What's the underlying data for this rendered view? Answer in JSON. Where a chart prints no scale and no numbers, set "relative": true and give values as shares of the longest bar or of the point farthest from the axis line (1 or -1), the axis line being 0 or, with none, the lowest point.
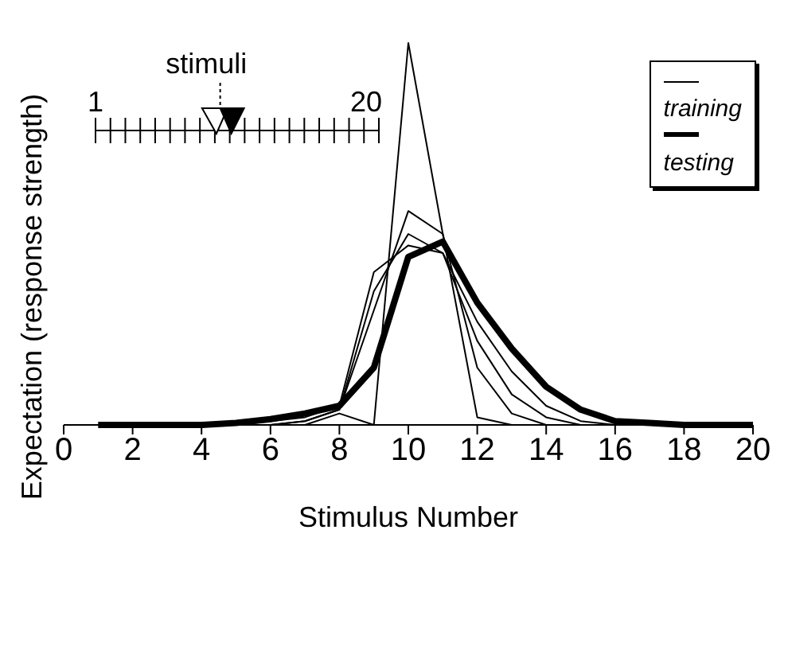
{
  "chart_data": {
    "type": "line",
    "xlabel": "Stimulus Number",
    "ylabel": "Expectation (response strength)",
    "relative": true,
    "x": [
      1,
      2,
      3,
      4,
      5,
      6,
      7,
      8,
      9,
      10,
      11,
      12,
      13,
      14,
      15,
      16,
      17,
      18,
      19,
      20
    ],
    "xlim": [
      0,
      20
    ],
    "xticks": [
      0,
      2,
      4,
      6,
      8,
      10,
      12,
      14,
      16,
      18,
      20
    ],
    "legend": "top right",
    "marker": "none",
    "line_style": "solid",
    "annotations": [
      "stimuli",
      "1",
      "20"
    ],
    "series": [
      {
        "name": "training",
        "color": "#000000",
        "values": [
          0,
          0,
          0,
          0,
          0,
          0,
          0,
          0.03,
          0,
          1.0,
          0.5,
          0.02,
          0,
          0,
          0,
          0,
          0,
          0,
          0,
          0
        ]
      },
      {
        "color": "#000000",
        "values": [
          0,
          0,
          0,
          0,
          0,
          0,
          0.01,
          0.04,
          0.3,
          0.56,
          0.5,
          0.15,
          0.03,
          0,
          0,
          0,
          0,
          0,
          0,
          0
        ]
      },
      {
        "color": "#000000",
        "values": [
          0,
          0,
          0,
          0,
          0,
          0,
          0.01,
          0.04,
          0.35,
          0.5,
          0.45,
          0.22,
          0.08,
          0.02,
          0,
          0,
          0,
          0,
          0,
          0
        ]
      },
      {
        "color": "#000000",
        "values": [
          0,
          0,
          0,
          0,
          0,
          0.01,
          0.02,
          0.05,
          0.4,
          0.47,
          0.45,
          0.27,
          0.14,
          0.05,
          0.01,
          0,
          0,
          0,
          0,
          0
        ]
      },
      {
        "name": "testing",
        "color": "#000000",
        "values": [
          0,
          0,
          0,
          0,
          0.005,
          0.015,
          0.03,
          0.05,
          0.15,
          0.44,
          0.48,
          0.32,
          0.2,
          0.1,
          0.04,
          0.01,
          0.005,
          0,
          0,
          0
        ]
      }
    ]
  }
}
